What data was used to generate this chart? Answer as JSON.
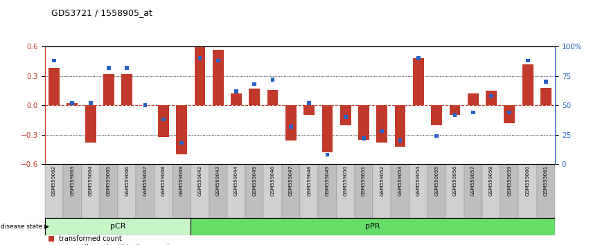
{
  "title": "GDS3721 / 1558905_at",
  "samples": [
    "GSM559062",
    "GSM559063",
    "GSM559064",
    "GSM559065",
    "GSM559066",
    "GSM559067",
    "GSM559068",
    "GSM559069",
    "GSM559042",
    "GSM559043",
    "GSM559044",
    "GSM559045",
    "GSM559046",
    "GSM559047",
    "GSM559048",
    "GSM559049",
    "GSM559050",
    "GSM559051",
    "GSM559052",
    "GSM559053",
    "GSM559054",
    "GSM559055",
    "GSM559056",
    "GSM559057",
    "GSM559058",
    "GSM559059",
    "GSM559060",
    "GSM559061"
  ],
  "red_bars": [
    0.38,
    0.02,
    -0.38,
    0.32,
    0.32,
    0.0,
    -0.32,
    -0.5,
    0.6,
    0.57,
    0.12,
    0.17,
    0.16,
    -0.36,
    -0.1,
    -0.48,
    -0.2,
    -0.35,
    -0.38,
    -0.42,
    0.48,
    -0.2,
    -0.1,
    0.12,
    0.15,
    -0.18,
    0.42,
    0.18
  ],
  "blue_vals": [
    88,
    52,
    52,
    82,
    82,
    50,
    38,
    18,
    90,
    88,
    62,
    68,
    72,
    32,
    52,
    8,
    40,
    22,
    28,
    20,
    90,
    24,
    42,
    44,
    58,
    44,
    88,
    70
  ],
  "pcr_count": 8,
  "ppr_count": 20,
  "ylim": [
    -0.6,
    0.6
  ],
  "y2lim": [
    0,
    100
  ],
  "yticks": [
    -0.6,
    -0.3,
    0.0,
    0.3,
    0.6
  ],
  "y2ticks": [
    0,
    25,
    50,
    75,
    100
  ],
  "bar_color": "#c0392b",
  "blue_color": "#2563c7",
  "pcr_color": "#c8f5c8",
  "ppr_color": "#66dd66",
  "grid_color": "#000000",
  "zero_line_color": "#c0392b",
  "bg_color": "#ffffff",
  "col_even": "#d0d0d0",
  "col_odd": "#bebebe"
}
